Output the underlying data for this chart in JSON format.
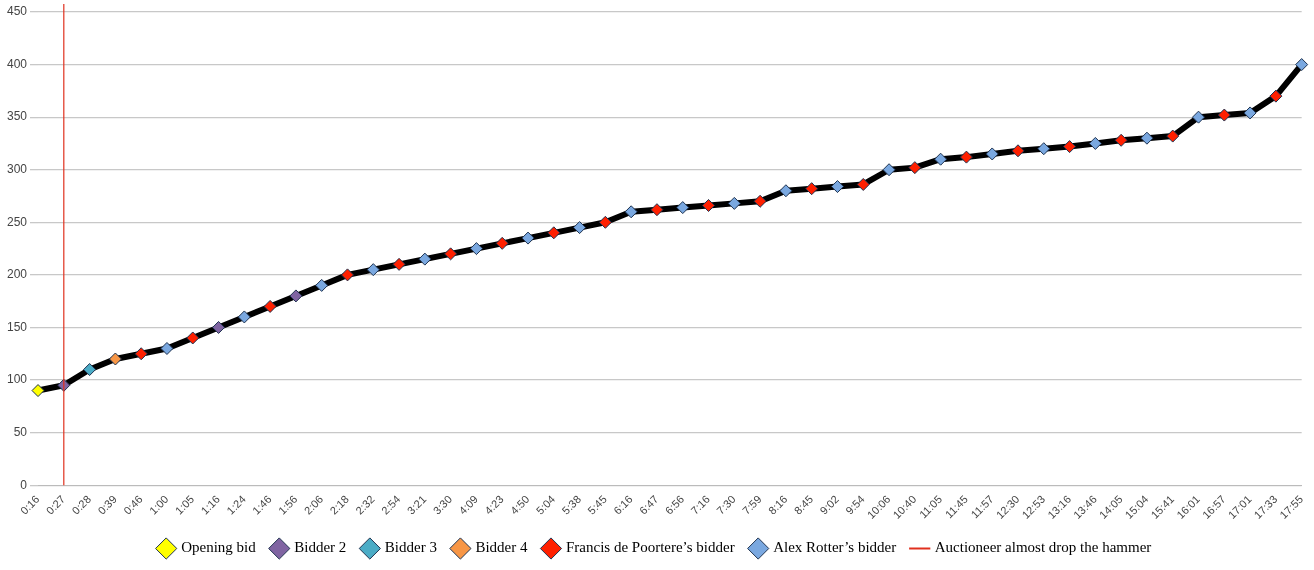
{
  "chart_data": {
    "type": "line",
    "categories": [
      "0:16",
      "0:27",
      "0:28",
      "0:39",
      "0:46",
      "1:00",
      "1:05",
      "1:16",
      "1:24",
      "1:46",
      "1:56",
      "2:06",
      "2:18",
      "2:32",
      "2:54",
      "3:21",
      "3:30",
      "4:09",
      "4:23",
      "4:50",
      "5:04",
      "5:38",
      "5:45",
      "6:16",
      "6:47",
      "6:56",
      "7:16",
      "7:30",
      "7:59",
      "8:16",
      "8:45",
      "9:02",
      "9:54",
      "10:06",
      "10:40",
      "11:05",
      "11:45",
      "11:57",
      "12:30",
      "12:53",
      "13:16",
      "13:46",
      "14:05",
      "15:04",
      "15:41",
      "16:01",
      "16:57",
      "17:01",
      "17:33",
      "17:55"
    ],
    "series": [
      {
        "color": "#000000",
        "marker": "none",
        "values": [
          90,
          95,
          110,
          120,
          125,
          130,
          140,
          150,
          160,
          170,
          180,
          190,
          200,
          205,
          210,
          215,
          220,
          225,
          230,
          235,
          240,
          245,
          250,
          260,
          262,
          264,
          266,
          268,
          270,
          280,
          282,
          284,
          286,
          300,
          302,
          310,
          312,
          315,
          318,
          320,
          322,
          325,
          328,
          330,
          332,
          350,
          352,
          354,
          370,
          400
        ]
      },
      {
        "type": "scatter",
        "name": "Opening bid",
        "color": "#ffff00",
        "x": [
          "0:16"
        ],
        "values": [
          90
        ]
      },
      {
        "type": "scatter",
        "name": "Bidder 2",
        "color": "#8064a2",
        "x": [
          "0:27",
          "1:16",
          "1:56"
        ],
        "values": [
          95,
          150,
          180
        ]
      },
      {
        "type": "scatter",
        "name": "Bidder 3",
        "color": "#4bacc6",
        "x": [
          "0:28"
        ],
        "values": [
          110
        ]
      },
      {
        "type": "scatter",
        "name": "Bidder 4",
        "color": "#f79646",
        "x": [
          "0:39"
        ],
        "values": [
          120
        ]
      },
      {
        "type": "scatter",
        "name": "Francis de Poortere’s bidder",
        "color": "#ff2000",
        "x": [
          "0:46",
          "1:05",
          "1:46",
          "2:18",
          "2:54",
          "3:30",
          "4:23",
          "5:04",
          "5:45",
          "6:47",
          "7:16",
          "7:59",
          "8:45",
          "9:54",
          "10:40",
          "11:45",
          "12:30",
          "13:16",
          "14:05",
          "15:41",
          "16:57",
          "17:33"
        ],
        "values": [
          125,
          140,
          170,
          200,
          210,
          220,
          230,
          240,
          250,
          262,
          266,
          270,
          282,
          286,
          302,
          312,
          318,
          322,
          328,
          332,
          352,
          370
        ]
      },
      {
        "type": "scatter",
        "name": "Alex Rotter’s bidder",
        "color": "#7aa8e0",
        "x": [
          "1:00",
          "1:24",
          "2:06",
          "2:32",
          "3:21",
          "4:09",
          "4:50",
          "5:38",
          "6:16",
          "6:56",
          "7:30",
          "8:16",
          "9:02",
          "10:06",
          "11:05",
          "11:57",
          "12:53",
          "13:46",
          "15:04",
          "16:01",
          "17:01",
          "17:55"
        ],
        "values": [
          130,
          160,
          190,
          205,
          215,
          225,
          235,
          245,
          260,
          264,
          268,
          280,
          284,
          300,
          310,
          315,
          320,
          325,
          330,
          350,
          354,
          400
        ]
      }
    ],
    "ylim": [
      0,
      450
    ],
    "yticks": [
      0,
      50,
      100,
      150,
      200,
      250,
      300,
      350,
      400,
      450
    ],
    "grid": "y",
    "legend": "bottom",
    "marker": "diamond",
    "line_style": "solid",
    "ref_lines": [
      {
        "axis": "x",
        "value": "0:27",
        "label": "Auctioneer almost drop the hammer",
        "color": "#e0301e"
      }
    ]
  }
}
